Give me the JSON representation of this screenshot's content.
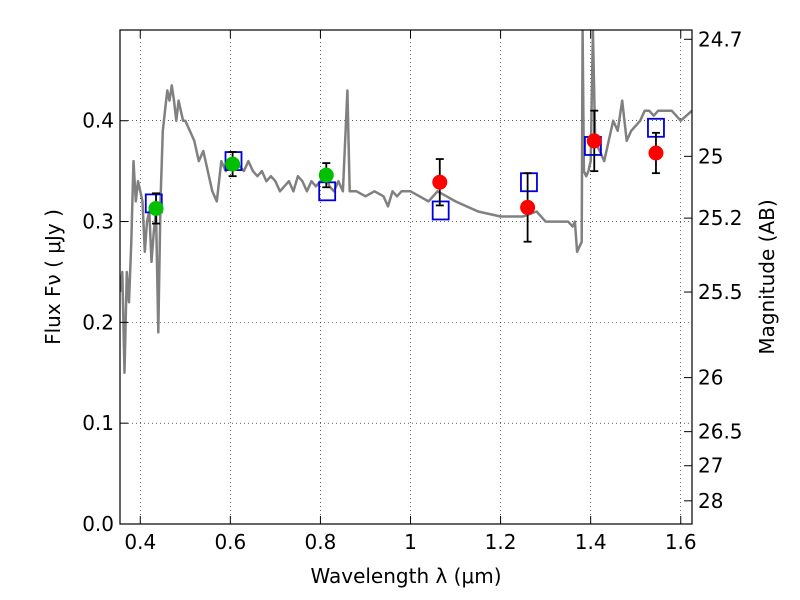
{
  "chart_data": {
    "type": "scatter",
    "title": "",
    "xlabel": "Wavelength  λ (μm)",
    "ylabel": "Flux  Fν  ( μJy )",
    "ylabel_right": "Magnitude (AB)",
    "xlim": [
      0.355,
      1.625
    ],
    "ylim": [
      0.0,
      0.49
    ],
    "grid": true,
    "legend": "none",
    "x_ticks": [
      {
        "value": 0.4,
        "label": "0.4"
      },
      {
        "value": 0.6,
        "label": "0.6"
      },
      {
        "value": 0.8,
        "label": "0.8"
      },
      {
        "value": 1.0,
        "label": "1"
      },
      {
        "value": 1.2,
        "label": "1.2"
      },
      {
        "value": 1.4,
        "label": "1.4"
      },
      {
        "value": 1.6,
        "label": "1.6"
      }
    ],
    "y_ticks": [
      {
        "value": 0.0,
        "label": "0.0"
      },
      {
        "value": 0.1,
        "label": "0.1"
      },
      {
        "value": 0.2,
        "label": "0.2"
      },
      {
        "value": 0.3,
        "label": "0.3"
      },
      {
        "value": 0.4,
        "label": "0.4"
      }
    ],
    "mag_ticks": [
      {
        "flux": 0.4808,
        "label": "24.7"
      },
      {
        "flux": 0.3647,
        "label": "25"
      },
      {
        "flux": 0.3034,
        "label": "25.2"
      },
      {
        "flux": 0.2301,
        "label": "25.5"
      },
      {
        "flux": 0.1452,
        "label": "26"
      },
      {
        "flux": 0.0916,
        "label": "26.5"
      },
      {
        "flux": 0.0578,
        "label": "27"
      },
      {
        "flux": 0.023,
        "label": "28"
      }
    ],
    "series": [
      {
        "kind": "model_spectrum",
        "color": "#808080",
        "x": [
          0.355,
          0.36,
          0.365,
          0.37,
          0.375,
          0.38,
          0.385,
          0.39,
          0.395,
          0.4,
          0.405,
          0.41,
          0.415,
          0.42,
          0.425,
          0.43,
          0.435,
          0.44,
          0.445,
          0.45,
          0.455,
          0.46,
          0.465,
          0.47,
          0.475,
          0.48,
          0.485,
          0.49,
          0.495,
          0.5,
          0.51,
          0.52,
          0.53,
          0.54,
          0.55,
          0.56,
          0.57,
          0.58,
          0.59,
          0.6,
          0.61,
          0.62,
          0.63,
          0.64,
          0.65,
          0.66,
          0.67,
          0.68,
          0.69,
          0.7,
          0.71,
          0.72,
          0.73,
          0.74,
          0.75,
          0.76,
          0.77,
          0.78,
          0.79,
          0.8,
          0.81,
          0.82,
          0.83,
          0.84,
          0.85,
          0.86,
          0.865,
          0.87,
          0.88,
          0.9,
          0.92,
          0.94,
          0.95,
          0.96,
          0.97,
          0.98,
          1.0,
          1.02,
          1.04,
          1.06,
          1.08,
          1.1,
          1.15,
          1.2,
          1.25,
          1.28,
          1.3,
          1.33,
          1.35,
          1.36,
          1.365,
          1.37,
          1.375,
          1.38,
          1.382,
          1.385,
          1.39,
          1.395,
          1.4,
          1.405,
          1.41,
          1.42,
          1.43,
          1.44,
          1.45,
          1.46,
          1.47,
          1.48,
          1.49,
          1.5,
          1.51,
          1.52,
          1.53,
          1.54,
          1.55,
          1.56,
          1.58,
          1.6,
          1.625
        ],
        "y": [
          0.23,
          0.25,
          0.15,
          0.25,
          0.22,
          0.28,
          0.36,
          0.32,
          0.34,
          0.33,
          0.32,
          0.27,
          0.3,
          0.31,
          0.26,
          0.29,
          0.31,
          0.19,
          0.32,
          0.39,
          0.41,
          0.43,
          0.42,
          0.435,
          0.42,
          0.4,
          0.42,
          0.41,
          0.4,
          0.4,
          0.39,
          0.38,
          0.36,
          0.37,
          0.35,
          0.33,
          0.32,
          0.36,
          0.35,
          0.355,
          0.36,
          0.355,
          0.35,
          0.36,
          0.35,
          0.345,
          0.35,
          0.34,
          0.345,
          0.34,
          0.33,
          0.335,
          0.34,
          0.33,
          0.345,
          0.34,
          0.33,
          0.34,
          0.335,
          0.34,
          0.35,
          0.335,
          0.33,
          0.34,
          0.33,
          0.43,
          0.33,
          0.33,
          0.33,
          0.325,
          0.33,
          0.325,
          0.315,
          0.33,
          0.325,
          0.33,
          0.33,
          0.325,
          0.32,
          0.33,
          0.325,
          0.32,
          0.31,
          0.305,
          0.305,
          0.31,
          0.3,
          0.3,
          0.3,
          0.295,
          0.3,
          0.27,
          0.275,
          0.28,
          0.49,
          0.35,
          0.345,
          0.35,
          0.36,
          0.49,
          0.38,
          0.37,
          0.36,
          0.38,
          0.4,
          0.39,
          0.42,
          0.38,
          0.39,
          0.395,
          0.4,
          0.41,
          0.41,
          0.405,
          0.41,
          0.41,
          0.41,
          0.4,
          0.41
        ]
      },
      {
        "kind": "model_photometry",
        "marker": "square",
        "color": "#0000dd",
        "points": [
          {
            "x": 0.43,
            "y": 0.318
          },
          {
            "x": 0.607,
            "y": 0.36
          },
          {
            "x": 0.815,
            "y": 0.33
          },
          {
            "x": 1.067,
            "y": 0.311
          },
          {
            "x": 1.263,
            "y": 0.339
          },
          {
            "x": 1.405,
            "y": 0.375
          },
          {
            "x": 1.545,
            "y": 0.393
          }
        ]
      },
      {
        "kind": "observed_optical",
        "marker": "circle",
        "color": "#00c000",
        "points": [
          {
            "x": 0.435,
            "y": 0.313,
            "err": 0.015
          },
          {
            "x": 0.605,
            "y": 0.357,
            "err": 0.012
          },
          {
            "x": 0.813,
            "y": 0.346,
            "err": 0.012
          }
        ]
      },
      {
        "kind": "observed_nir",
        "marker": "circle",
        "color": "#ff0000",
        "points": [
          {
            "x": 1.065,
            "y": 0.339,
            "err": 0.023
          },
          {
            "x": 1.26,
            "y": 0.314,
            "err": 0.034
          },
          {
            "x": 1.408,
            "y": 0.38,
            "err": 0.03
          },
          {
            "x": 1.545,
            "y": 0.368,
            "err": 0.02
          }
        ]
      }
    ]
  }
}
